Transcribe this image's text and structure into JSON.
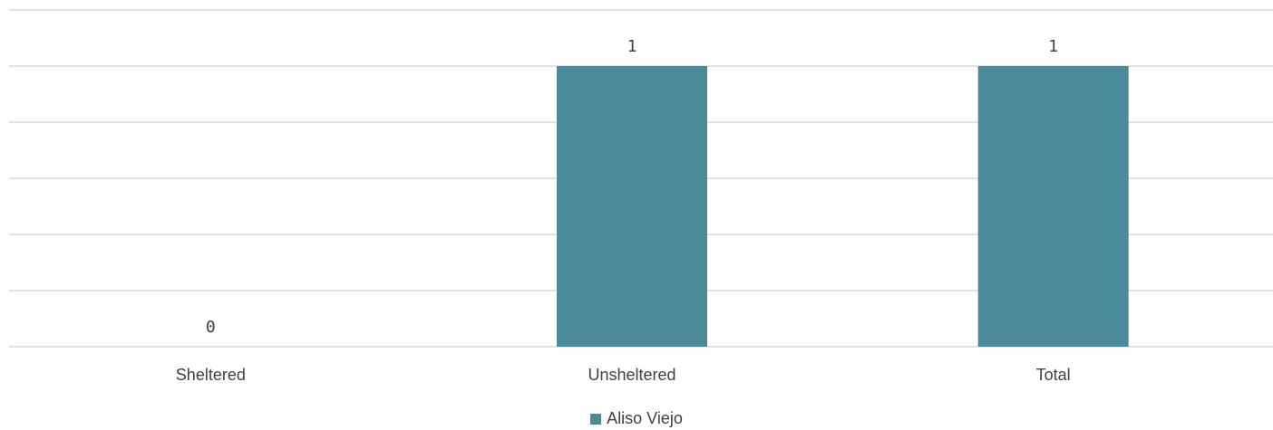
{
  "chart_data": {
    "type": "bar",
    "title": "",
    "xlabel": "",
    "ylabel": "",
    "categories": [
      "Sheltered",
      "Unsheltered",
      "Total"
    ],
    "series": [
      {
        "name": "Aliso Viejo",
        "values": [
          0,
          1,
          1
        ],
        "color": "#4a8a9a"
      }
    ],
    "data_labels": [
      "0",
      "1",
      "1"
    ],
    "ylim": [
      0,
      1.2
    ],
    "grid": true,
    "legend_position": "bottom"
  }
}
